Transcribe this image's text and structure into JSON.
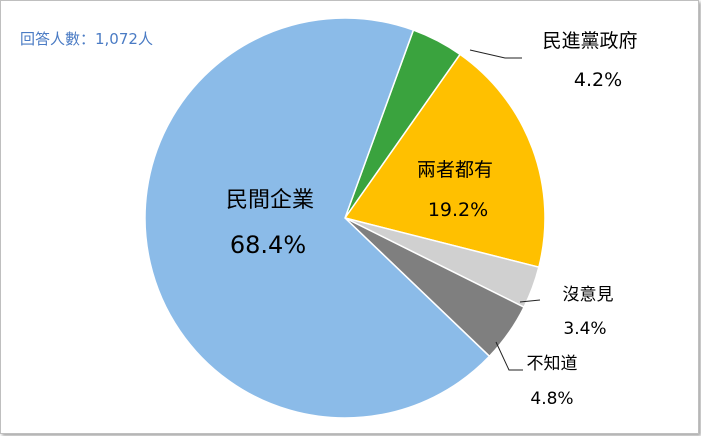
{
  "note": "回答人數：1,072人",
  "colors": {
    "note_text": "#4a7bc4",
    "slices": [
      "#3aa33e",
      "#ffc000",
      "#d0d0d0",
      "#7f7f7f",
      "#8bbbe8"
    ]
  },
  "chart_data": {
    "type": "pie",
    "categories": [
      "民進黨政府",
      "兩者都有",
      "沒意見",
      "不知道",
      "民間企業"
    ],
    "values": [
      4.2,
      19.2,
      3.4,
      4.8,
      68.4
    ],
    "value_labels": [
      "4.2%",
      "19.2%",
      "3.4%",
      "4.8%",
      "68.4%"
    ],
    "start_angle_deg": 20,
    "direction": "clockwise"
  }
}
